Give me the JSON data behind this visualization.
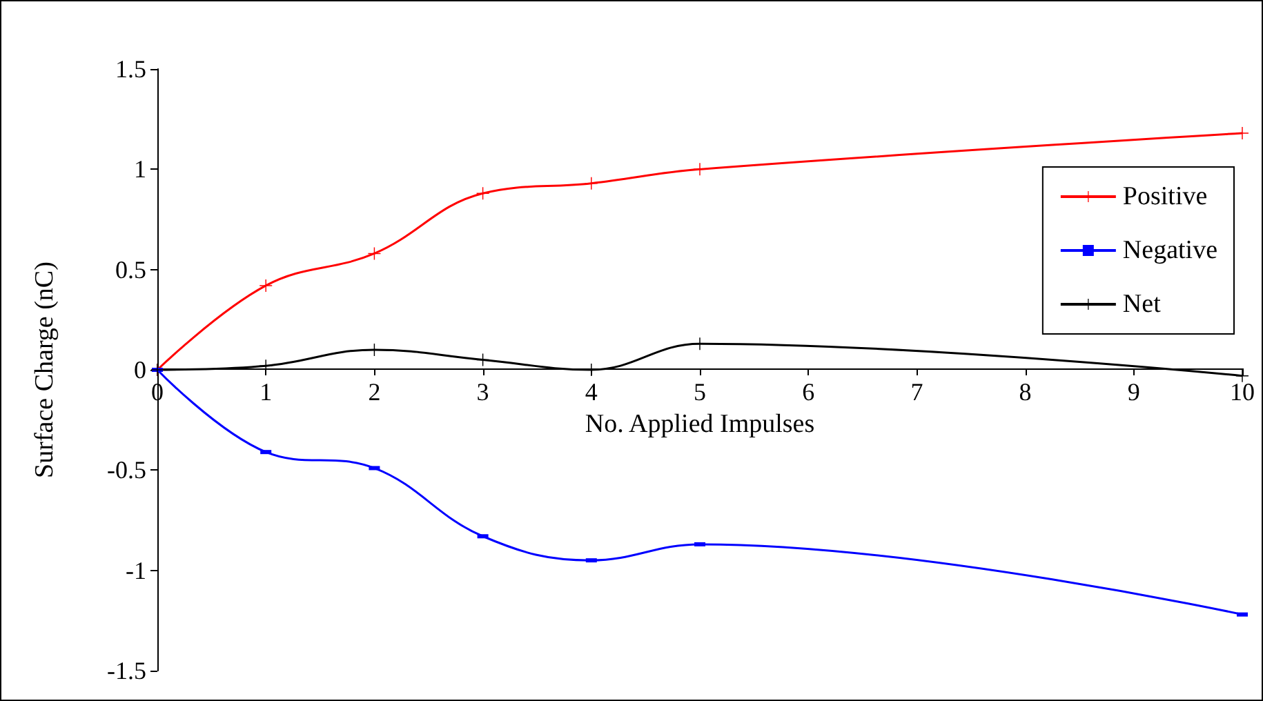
{
  "chart_data": {
    "type": "line",
    "xlabel": "No. Applied Impulses",
    "ylabel": "Surface Charge (nC)",
    "xlim": [
      0,
      10
    ],
    "xticks": [
      0,
      1,
      2,
      3,
      4,
      5,
      6,
      7,
      8,
      9,
      10
    ],
    "ylim": [
      -1.5,
      1.5
    ],
    "yticks": [
      -1.5,
      -1,
      -0.5,
      0,
      0.5,
      1,
      1.5
    ],
    "legend": "right",
    "line_style": "solid",
    "series": [
      {
        "name": "Positive",
        "color": "#ff0000",
        "marker": "cross",
        "x": [
          0,
          1,
          2,
          3,
          4,
          5,
          10
        ],
        "values": [
          0,
          0.42,
          0.58,
          0.88,
          0.93,
          1.0,
          1.18
        ]
      },
      {
        "name": "Negative",
        "color": "#0000ff",
        "marker": "square",
        "x": [
          0,
          1,
          2,
          3,
          4,
          5,
          10
        ],
        "values": [
          0,
          -0.41,
          -0.49,
          -0.83,
          -0.95,
          -0.87,
          -1.22
        ]
      },
      {
        "name": "Net",
        "color": "#000000",
        "marker": "cross",
        "x": [
          0,
          1,
          2,
          3,
          4,
          5,
          10
        ],
        "values": [
          0,
          0.02,
          0.1,
          0.05,
          0,
          0.13,
          -0.03
        ]
      }
    ]
  }
}
